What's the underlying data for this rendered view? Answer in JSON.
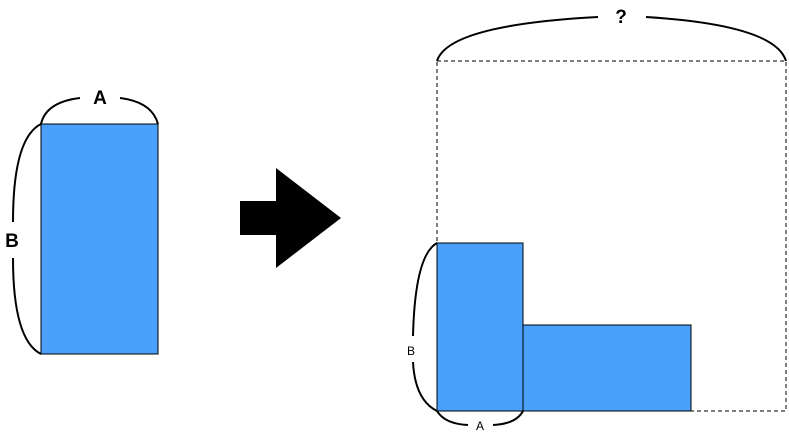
{
  "colors": {
    "rect_fill": "#4aa0fb",
    "stroke": "#000000",
    "background": "#ffffff"
  },
  "left_figure": {
    "width_label": "A",
    "height_label": "B"
  },
  "arrow": {
    "icon": "right-arrow-icon"
  },
  "right_figure": {
    "top_label": "?",
    "side_label": "B",
    "bottom_label": "A"
  }
}
